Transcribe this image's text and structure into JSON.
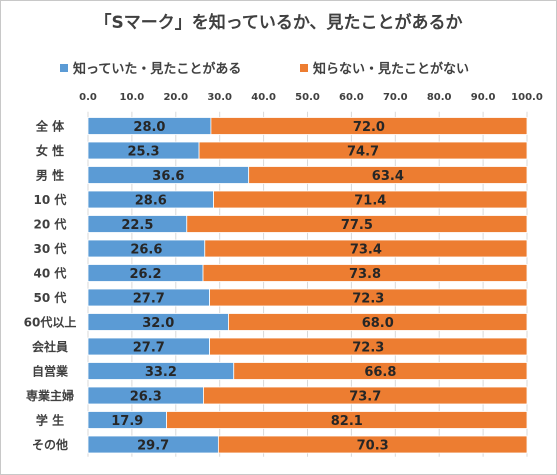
{
  "chart_data": {
    "type": "bar",
    "stacked": true,
    "orientation": "horizontal",
    "title": "「Sマーク」を知っているか、見たことがあるか",
    "categories": [
      "全 体",
      "女 性",
      "男 性",
      "10 代",
      "20 代",
      "30 代",
      "40 代",
      "50 代",
      "60代以上",
      "会社員",
      "自営業",
      "専業主婦",
      "学 生",
      "その他"
    ],
    "series": [
      {
        "name": "知っていた・見たことがある",
        "color": "#5b9bd5",
        "values": [
          28.0,
          25.3,
          36.6,
          28.6,
          22.5,
          26.6,
          26.2,
          27.7,
          32.0,
          27.7,
          33.2,
          26.3,
          17.9,
          29.7
        ]
      },
      {
        "name": "知らない・見たことがない",
        "color": "#ed7d31",
        "values": [
          72.0,
          74.7,
          63.4,
          71.4,
          77.5,
          73.4,
          73.8,
          72.3,
          68.0,
          72.3,
          66.8,
          73.7,
          82.1,
          70.3
        ]
      }
    ],
    "xlim": [
      0,
      100
    ],
    "xticks": [
      "0.0",
      "10.0",
      "20.0",
      "30.0",
      "40.0",
      "50.0",
      "60.0",
      "70.0",
      "80.0",
      "90.0",
      "100.0"
    ],
    "grid": true,
    "legend_position": "top"
  }
}
